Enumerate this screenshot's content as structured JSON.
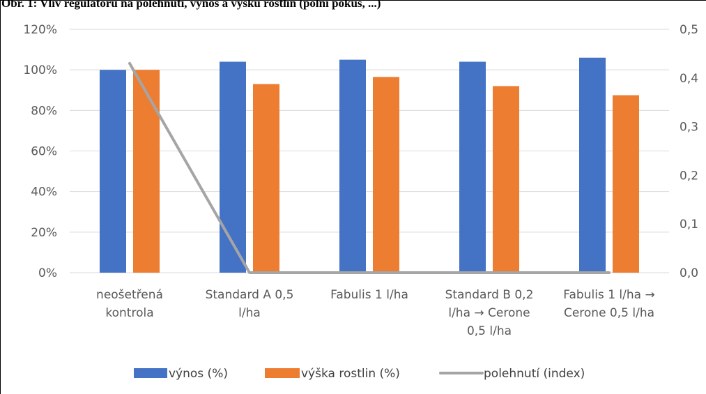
{
  "title": "Obr. 1: Vliv regulátoru na polehnutí, výnos a výšku rostlin (polní pokus, ...)",
  "chart_data": {
    "type": "bar",
    "categories": [
      [
        "neošetřená",
        "kontrola"
      ],
      [
        "Standard A 0,5",
        "l/ha"
      ],
      [
        "Fabulis 1 l/ha"
      ],
      [
        "Standard B 0,2",
        "l/ha → Cerone",
        "0,5 l/ha"
      ],
      [
        "Fabulis 1 l/ha →",
        "Cerone 0,5 l/ha"
      ]
    ],
    "series": [
      {
        "name": "výnos (%)",
        "axis": "left",
        "kind": "bar",
        "color": "#4472C4",
        "values": [
          100,
          104,
          105,
          104,
          106
        ]
      },
      {
        "name": "výška rostlin (%)",
        "axis": "left",
        "kind": "bar",
        "color": "#ED7D31",
        "values": [
          100,
          93,
          96.5,
          92,
          87.5
        ]
      },
      {
        "name": "polehnutí (index)",
        "axis": "right",
        "kind": "line",
        "color": "#A5A5A5",
        "values": [
          0.43,
          0,
          0,
          0,
          0
        ]
      }
    ],
    "y_left": {
      "min": 0,
      "max": 120,
      "ticks": [
        "0%",
        "20%",
        "40%",
        "60%",
        "80%",
        "100%",
        "120%"
      ],
      "tick_values": [
        0,
        20,
        40,
        60,
        80,
        100,
        120
      ]
    },
    "y_right": {
      "min": 0,
      "max": 0.5,
      "ticks": [
        "0,0",
        "0,1",
        "0,2",
        "0,3",
        "0,4",
        "0,5"
      ],
      "tick_values": [
        0,
        0.1,
        0.2,
        0.3,
        0.4,
        0.5
      ]
    },
    "grid": true,
    "legend_position": "bottom"
  }
}
